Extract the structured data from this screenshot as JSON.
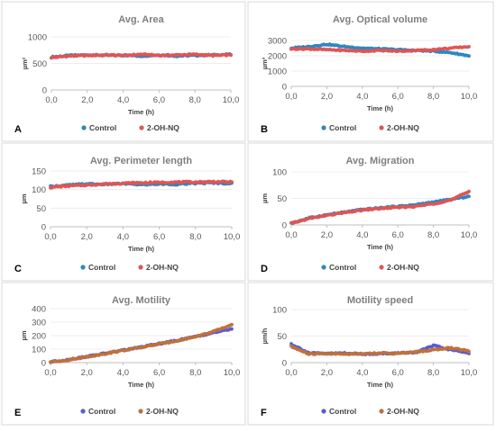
{
  "colors": {
    "control_blue": "#2e86c1",
    "control_purple": "#5b5bd6",
    "treat_red": "#e05555",
    "treat_brown": "#c0713a",
    "errorbar": "#8c8c8c"
  },
  "chart_data": [
    {
      "type": "scatter",
      "panel_letter": "A",
      "title": "Avg. Area",
      "xlabel": "Time (h)",
      "ylabel": "µm²",
      "xlim": [
        0,
        10
      ],
      "ylim": [
        0,
        1000
      ],
      "xticks": [
        "0,0",
        "2,0",
        "4,0",
        "6,0",
        "8,0",
        "10,0"
      ],
      "yticks": [
        "0",
        "500",
        "1000"
      ],
      "legend_position": "bottom",
      "series": [
        {
          "name": "Control",
          "color": "#2e86c1",
          "x": [
            0,
            1,
            2,
            3,
            4,
            5,
            6,
            7,
            8,
            9,
            10
          ],
          "values": [
            620,
            650,
            660,
            650,
            655,
            640,
            660,
            640,
            650,
            660,
            670
          ]
        },
        {
          "name": "2-OH-NQ",
          "color": "#e05555",
          "x": [
            0,
            1,
            2,
            3,
            4,
            5,
            6,
            7,
            8,
            9,
            10
          ],
          "values": [
            610,
            640,
            650,
            660,
            650,
            670,
            650,
            660,
            670,
            650,
            660
          ]
        }
      ]
    },
    {
      "type": "scatter",
      "panel_letter": "B",
      "title": "Avg. Optical volume",
      "xlabel": "Time (h)",
      "ylabel": "µm³",
      "xlim": [
        0,
        10
      ],
      "ylim": [
        0,
        3000
      ],
      "xticks": [
        "0,0",
        "2,0",
        "4,0",
        "6,0",
        "8,0",
        "10,0"
      ],
      "yticks": [
        "0",
        "1000",
        "2000",
        "3000"
      ],
      "legend_position": "bottom",
      "series": [
        {
          "name": "Control",
          "color": "#2e86c1",
          "x": [
            0,
            1,
            2,
            3,
            4,
            5,
            6,
            7,
            8,
            9,
            10
          ],
          "values": [
            2500,
            2600,
            2750,
            2600,
            2500,
            2450,
            2400,
            2350,
            2300,
            2200,
            2000
          ]
        },
        {
          "name": "2-OH-NQ",
          "color": "#e05555",
          "x": [
            0,
            1,
            2,
            3,
            4,
            5,
            6,
            7,
            8,
            9,
            10
          ],
          "values": [
            2450,
            2450,
            2400,
            2350,
            2300,
            2350,
            2300,
            2350,
            2400,
            2500,
            2600
          ]
        }
      ]
    },
    {
      "type": "scatter",
      "panel_letter": "C",
      "title": "Avg. Perimeter length",
      "xlabel": "Time (h)",
      "ylabel": "µm",
      "xlim": [
        0,
        10
      ],
      "ylim": [
        0,
        150
      ],
      "xticks": [
        "0,0",
        "2,0",
        "4,0",
        "6,0",
        "8,0",
        "10,0"
      ],
      "yticks": [
        "0",
        "50",
        "100",
        "150"
      ],
      "legend_position": "bottom",
      "series": [
        {
          "name": "Control",
          "color": "#2e86c1",
          "x": [
            0,
            1,
            2,
            3,
            4,
            5,
            6,
            7,
            8,
            9,
            10
          ],
          "values": [
            108,
            112,
            115,
            114,
            116,
            113,
            115,
            114,
            117,
            118,
            116
          ]
        },
        {
          "name": "2-OH-NQ",
          "color": "#e05555",
          "x": [
            0,
            1,
            2,
            3,
            4,
            5,
            6,
            7,
            8,
            9,
            10
          ],
          "values": [
            106,
            110,
            112,
            115,
            117,
            118,
            119,
            120,
            120,
            121,
            120
          ]
        }
      ]
    },
    {
      "type": "scatter",
      "panel_letter": "D",
      "title": "Avg. Migration",
      "xlabel": "Time (h)",
      "ylabel": "µm",
      "xlim": [
        0,
        10
      ],
      "ylim": [
        0,
        100
      ],
      "xticks": [
        "0,0",
        "2,0",
        "4,0",
        "6,0",
        "8,0",
        "10,0"
      ],
      "yticks": [
        "0",
        "50",
        "100"
      ],
      "legend_position": "bottom",
      "series": [
        {
          "name": "Control",
          "color": "#2e86c1",
          "x": [
            0,
            1,
            2,
            3,
            4,
            5,
            6,
            7,
            8,
            9,
            10
          ],
          "values": [
            3,
            13,
            19,
            24,
            29,
            32,
            35,
            38,
            43,
            48,
            54
          ]
        },
        {
          "name": "2-OH-NQ",
          "color": "#e05555",
          "x": [
            0,
            1,
            2,
            3,
            4,
            5,
            6,
            7,
            8,
            9,
            10
          ],
          "values": [
            3,
            12,
            18,
            23,
            28,
            31,
            33,
            35,
            40,
            47,
            63
          ]
        }
      ]
    },
    {
      "type": "scatter",
      "panel_letter": "E",
      "title": "Avg. Motility",
      "xlabel": "Time (h)",
      "ylabel": "µm",
      "xlim": [
        0,
        10
      ],
      "ylim": [
        0,
        400
      ],
      "xticks": [
        "0,0",
        "2,0",
        "4,0",
        "6,0",
        "8,0",
        "10,0"
      ],
      "yticks": [
        "0",
        "100",
        "200",
        "300",
        "400"
      ],
      "legend_position": "bottom",
      "series": [
        {
          "name": "Control",
          "color": "#5b5bd6",
          "x": [
            0,
            1,
            2,
            3,
            4,
            5,
            6,
            7,
            8,
            9,
            10
          ],
          "values": [
            5,
            22,
            45,
            68,
            92,
            115,
            140,
            165,
            192,
            222,
            250
          ]
        },
        {
          "name": "2-OH-NQ",
          "color": "#c0713a",
          "x": [
            0,
            1,
            2,
            3,
            4,
            5,
            6,
            7,
            8,
            9,
            10
          ],
          "values": [
            5,
            21,
            43,
            66,
            90,
            113,
            138,
            163,
            192,
            230,
            280
          ]
        }
      ]
    },
    {
      "type": "scatter",
      "panel_letter": "F",
      "title": "Motility speed",
      "xlabel": "Time (h)",
      "ylabel": "µm/h",
      "xlim": [
        0,
        10
      ],
      "ylim": [
        0,
        100
      ],
      "xticks": [
        "0,0",
        "2,0",
        "4,0",
        "6,0",
        "8,0",
        "10,0"
      ],
      "yticks": [
        "0",
        "50",
        "100"
      ],
      "legend_position": "bottom",
      "series": [
        {
          "name": "Control",
          "color": "#5b5bd6",
          "x": [
            0,
            1,
            2,
            3,
            4,
            5,
            6,
            7,
            8,
            9,
            10
          ],
          "values": [
            35,
            18,
            17,
            18,
            16,
            17,
            18,
            19,
            32,
            24,
            18
          ]
        },
        {
          "name": "2-OH-NQ",
          "color": "#c0713a",
          "x": [
            0,
            1,
            2,
            3,
            4,
            5,
            6,
            7,
            8,
            9,
            10
          ],
          "values": [
            30,
            16,
            17,
            16,
            17,
            18,
            17,
            20,
            24,
            28,
            22
          ]
        }
      ]
    }
  ]
}
